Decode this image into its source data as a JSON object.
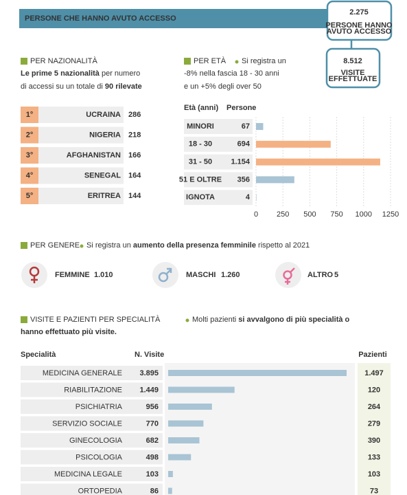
{
  "header": {
    "title": "PERSONE CHE HANNO AVUTO ACCESSO",
    "stats": [
      {
        "number": "2.275",
        "label_lines": [
          "PERSONE HANNO",
          "AVUTO ACCESSO"
        ]
      },
      {
        "number": "8.512",
        "label_lines": [
          "VISITE",
          "EFFETTUATE"
        ]
      }
    ]
  },
  "nationality": {
    "title": "PER NAZIONALITÀ",
    "intro_lines": [
      [
        "Le prime 5 nazionalità",
        " per numero"
      ],
      [
        "di accessi su un totale di ",
        "90 rilevate"
      ]
    ],
    "rows": [
      {
        "rank": "1°",
        "country": "UCRAINA",
        "count": "286"
      },
      {
        "rank": "2°",
        "country": "NIGERIA",
        "count": "218"
      },
      {
        "rank": "3°",
        "country": "AFGHANISTAN",
        "count": "166"
      },
      {
        "rank": "4°",
        "country": "SENEGAL",
        "count": "164"
      },
      {
        "rank": "5°",
        "country": "ERITREA",
        "count": "144"
      }
    ]
  },
  "age": {
    "title": "PER ETÀ",
    "note_lines": [
      "Si registra un",
      "-8% nella fascia 18 - 30 anni",
      "e un +5% degli over 50"
    ],
    "col_label": "Età (anni)",
    "col_value": "Persone",
    "chart_data": {
      "type": "bar",
      "categories": [
        "MINORI",
        "18 - 30",
        "31 - 50",
        "51 E OLTRE",
        "IGNOTA"
      ],
      "values": [
        67,
        694,
        1154,
        356,
        4
      ],
      "value_labels": [
        "67",
        "694",
        "1.154",
        "356",
        "4"
      ],
      "colors": [
        "#a9c4d4",
        "#f4b183",
        "#f4b183",
        "#a9c4d4",
        "#a9c4d4"
      ],
      "label_colors": [
        "#1f5f80",
        "#c87a3e",
        "#c87a3e",
        "#1f5f80",
        "#1f5f80"
      ],
      "xlim": [
        0,
        1250
      ],
      "xticks": [
        0,
        250,
        500,
        750,
        1000,
        1250
      ]
    }
  },
  "gender": {
    "title": "PER GENERE",
    "note_parts": [
      "Si registra un ",
      "aumento della presenza femminile",
      " rispetto al 2021"
    ],
    "items": [
      {
        "label": "FEMMINE",
        "value": "1.010",
        "color": "#b53a3a"
      },
      {
        "label": "MASCHI",
        "value": "1.260",
        "color": "#8fb0cc"
      },
      {
        "label": "ALTRO",
        "value": "5",
        "color": "#e86b9a"
      }
    ]
  },
  "specialty": {
    "title": "VISITE E PAZIENTI PER SPECIALITÀ",
    "note_lines": [
      [
        "Molti pazienti ",
        "si avvalgono di più specialità o"
      ],
      [
        "",
        "hanno effettuato più visite."
      ]
    ],
    "col_name": "Specialità",
    "col_visits": "N. Visite",
    "col_patients": "Pazienti",
    "chart_data": {
      "type": "bar",
      "categories": [
        "MEDICINA GENERALE",
        "RIABILITAZIONE",
        "PSICHIATRIA",
        "SERVIZIO SOCIALE",
        "GINECOLOGIA",
        "PSICOLOGIA",
        "MEDICINA LEGALE",
        "ORTOPEDIA"
      ],
      "values": [
        3895,
        1449,
        956,
        770,
        682,
        498,
        103,
        86
      ],
      "value_labels": [
        "3.895",
        "1.449",
        "956",
        "770",
        "682",
        "498",
        "103",
        "86"
      ],
      "color": "#a9c4d4",
      "patients": [
        "1.497",
        "120",
        "264",
        "279",
        "390",
        "133",
        "103",
        "73"
      ]
    }
  }
}
